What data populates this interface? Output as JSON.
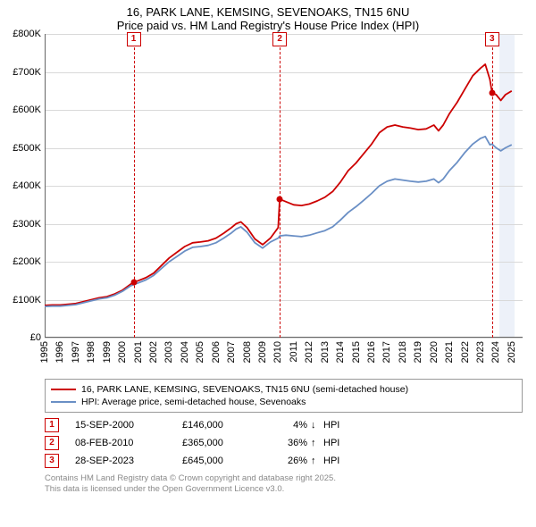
{
  "title": {
    "line1": "16, PARK LANE, KEMSING, SEVENOAKS, TN15 6NU",
    "line2": "Price paid vs. HM Land Registry's House Price Index (HPI)"
  },
  "chart": {
    "type": "line",
    "background_color": "#ffffff",
    "grid_color": "#d9d9d9",
    "axis_color": "#666666",
    "x_years": [
      1995,
      1996,
      1997,
      1998,
      1999,
      2000,
      2001,
      2002,
      2003,
      2004,
      2005,
      2006,
      2007,
      2008,
      2009,
      2010,
      2011,
      2012,
      2013,
      2014,
      2015,
      2016,
      2017,
      2018,
      2019,
      2020,
      2021,
      2022,
      2023,
      2024,
      2025
    ],
    "x_min": 1995,
    "x_max": 2025.7,
    "y_min": 0,
    "y_max": 800000,
    "y_ticks": [
      0,
      100000,
      200000,
      300000,
      400000,
      500000,
      600000,
      700000,
      800000
    ],
    "y_tick_labels": [
      "£0",
      "£100K",
      "£200K",
      "£300K",
      "£400K",
      "£500K",
      "£600K",
      "£700K",
      "£800K"
    ],
    "x_tick_label_fontsize": 11,
    "y_tick_label_fontsize": 11,
    "line_width": 1.8,
    "shade_bands": [
      {
        "from": 2024.2,
        "to": 2025.2,
        "color": "#e8eef7"
      }
    ],
    "events": [
      {
        "num": "1",
        "year": 2000.71,
        "price": 146000,
        "marker_color": "#cc0000"
      },
      {
        "num": "2",
        "year": 2010.1,
        "price": 365000,
        "marker_color": "#cc0000"
      },
      {
        "num": "3",
        "year": 2023.74,
        "price": 645000,
        "marker_color": "#cc0000"
      }
    ],
    "event_line_color": "#cc0000",
    "series": [
      {
        "name": "price_paid",
        "label": "16, PARK LANE, KEMSING, SEVENOAKS, TN15 6NU (semi-detached house)",
        "color": "#cc0000",
        "points": [
          [
            1995.0,
            85000
          ],
          [
            1995.5,
            86000
          ],
          [
            1996.0,
            86000
          ],
          [
            1996.5,
            88000
          ],
          [
            1997.0,
            90000
          ],
          [
            1997.5,
            95000
          ],
          [
            1998.0,
            100000
          ],
          [
            1998.5,
            105000
          ],
          [
            1999.0,
            108000
          ],
          [
            1999.5,
            115000
          ],
          [
            2000.0,
            125000
          ],
          [
            2000.5,
            140000
          ],
          [
            2000.71,
            146000
          ],
          [
            2001.0,
            150000
          ],
          [
            2001.5,
            158000
          ],
          [
            2002.0,
            170000
          ],
          [
            2002.5,
            190000
          ],
          [
            2003.0,
            210000
          ],
          [
            2003.5,
            225000
          ],
          [
            2004.0,
            240000
          ],
          [
            2004.5,
            250000
          ],
          [
            2005.0,
            252000
          ],
          [
            2005.5,
            255000
          ],
          [
            2006.0,
            262000
          ],
          [
            2006.5,
            275000
          ],
          [
            2007.0,
            290000
          ],
          [
            2007.3,
            300000
          ],
          [
            2007.6,
            305000
          ],
          [
            2008.0,
            290000
          ],
          [
            2008.5,
            260000
          ],
          [
            2009.0,
            245000
          ],
          [
            2009.5,
            262000
          ],
          [
            2010.0,
            290000
          ],
          [
            2010.1,
            365000
          ],
          [
            2010.5,
            358000
          ],
          [
            2011.0,
            350000
          ],
          [
            2011.5,
            348000
          ],
          [
            2012.0,
            352000
          ],
          [
            2012.5,
            360000
          ],
          [
            2013.0,
            370000
          ],
          [
            2013.5,
            385000
          ],
          [
            2014.0,
            410000
          ],
          [
            2014.5,
            440000
          ],
          [
            2015.0,
            460000
          ],
          [
            2015.5,
            485000
          ],
          [
            2016.0,
            510000
          ],
          [
            2016.5,
            540000
          ],
          [
            2017.0,
            555000
          ],
          [
            2017.5,
            560000
          ],
          [
            2018.0,
            555000
          ],
          [
            2018.5,
            552000
          ],
          [
            2019.0,
            548000
          ],
          [
            2019.5,
            550000
          ],
          [
            2020.0,
            560000
          ],
          [
            2020.3,
            545000
          ],
          [
            2020.6,
            560000
          ],
          [
            2021.0,
            590000
          ],
          [
            2021.5,
            620000
          ],
          [
            2022.0,
            655000
          ],
          [
            2022.5,
            690000
          ],
          [
            2023.0,
            710000
          ],
          [
            2023.3,
            720000
          ],
          [
            2023.6,
            680000
          ],
          [
            2023.74,
            645000
          ],
          [
            2024.0,
            640000
          ],
          [
            2024.3,
            625000
          ],
          [
            2024.6,
            640000
          ],
          [
            2025.0,
            650000
          ]
        ]
      },
      {
        "name": "hpi",
        "label": "HPI: Average price, semi-detached house, Sevenoaks",
        "color": "#6a8fc5",
        "points": [
          [
            1995.0,
            82000
          ],
          [
            1995.5,
            83000
          ],
          [
            1996.0,
            83000
          ],
          [
            1996.5,
            85000
          ],
          [
            1997.0,
            87000
          ],
          [
            1997.5,
            92000
          ],
          [
            1998.0,
            97000
          ],
          [
            1998.5,
            102000
          ],
          [
            1999.0,
            105000
          ],
          [
            1999.5,
            112000
          ],
          [
            2000.0,
            122000
          ],
          [
            2000.5,
            136000
          ],
          [
            2001.0,
            144000
          ],
          [
            2001.5,
            152000
          ],
          [
            2002.0,
            164000
          ],
          [
            2002.5,
            182000
          ],
          [
            2003.0,
            200000
          ],
          [
            2003.5,
            214000
          ],
          [
            2004.0,
            228000
          ],
          [
            2004.5,
            238000
          ],
          [
            2005.0,
            240000
          ],
          [
            2005.5,
            243000
          ],
          [
            2006.0,
            250000
          ],
          [
            2006.5,
            262000
          ],
          [
            2007.0,
            276000
          ],
          [
            2007.3,
            286000
          ],
          [
            2007.6,
            292000
          ],
          [
            2008.0,
            278000
          ],
          [
            2008.5,
            250000
          ],
          [
            2009.0,
            236000
          ],
          [
            2009.5,
            252000
          ],
          [
            2010.0,
            262000
          ],
          [
            2010.1,
            268000
          ],
          [
            2010.5,
            270000
          ],
          [
            2011.0,
            268000
          ],
          [
            2011.5,
            266000
          ],
          [
            2012.0,
            270000
          ],
          [
            2012.5,
            276000
          ],
          [
            2013.0,
            282000
          ],
          [
            2013.5,
            292000
          ],
          [
            2014.0,
            310000
          ],
          [
            2014.5,
            330000
          ],
          [
            2015.0,
            345000
          ],
          [
            2015.5,
            362000
          ],
          [
            2016.0,
            380000
          ],
          [
            2016.5,
            400000
          ],
          [
            2017.0,
            412000
          ],
          [
            2017.5,
            418000
          ],
          [
            2018.0,
            415000
          ],
          [
            2018.5,
            412000
          ],
          [
            2019.0,
            410000
          ],
          [
            2019.5,
            412000
          ],
          [
            2020.0,
            418000
          ],
          [
            2020.3,
            408000
          ],
          [
            2020.6,
            418000
          ],
          [
            2021.0,
            440000
          ],
          [
            2021.5,
            462000
          ],
          [
            2022.0,
            488000
          ],
          [
            2022.5,
            510000
          ],
          [
            2023.0,
            525000
          ],
          [
            2023.3,
            530000
          ],
          [
            2023.6,
            508000
          ],
          [
            2023.74,
            510000
          ],
          [
            2024.0,
            500000
          ],
          [
            2024.3,
            492000
          ],
          [
            2024.6,
            500000
          ],
          [
            2025.0,
            508000
          ]
        ]
      }
    ]
  },
  "legend": {
    "rows": [
      {
        "color": "#cc0000",
        "label": "16, PARK LANE, KEMSING, SEVENOAKS, TN15 6NU (semi-detached house)"
      },
      {
        "color": "#6a8fc5",
        "label": "HPI: Average price, semi-detached house, Sevenoaks"
      }
    ]
  },
  "events_table": {
    "hpi_label": "HPI",
    "rows": [
      {
        "num": "1",
        "date": "15-SEP-2000",
        "price": "£146,000",
        "pct": "4%",
        "arrow": "↓"
      },
      {
        "num": "2",
        "date": "08-FEB-2010",
        "price": "£365,000",
        "pct": "36%",
        "arrow": "↑"
      },
      {
        "num": "3",
        "date": "28-SEP-2023",
        "price": "£645,000",
        "pct": "26%",
        "arrow": "↑"
      }
    ]
  },
  "attribution": {
    "line1": "Contains HM Land Registry data © Crown copyright and database right 2025.",
    "line2": "This data is licensed under the Open Government Licence v3.0."
  }
}
